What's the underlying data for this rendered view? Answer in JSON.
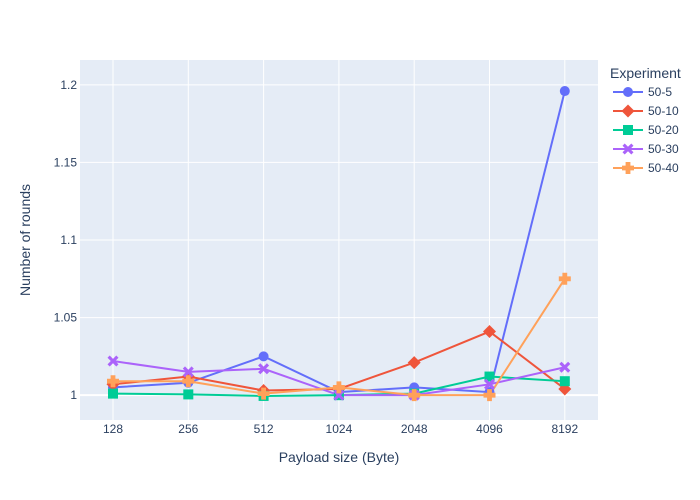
{
  "chart_data": {
    "type": "line",
    "x_categories": [
      "128",
      "256",
      "512",
      "1024",
      "2048",
      "4096",
      "8192"
    ],
    "xlabel": "Payload size (Byte)",
    "ylabel": "Number of rounds",
    "ylim": [
      0.984,
      1.216
    ],
    "y_ticks": [
      1,
      1.05,
      1.1,
      1.15,
      1.2
    ],
    "y_tick_labels": [
      "1",
      "1.05",
      "1.1",
      "1.15",
      "1.2"
    ],
    "grid": true,
    "legend": {
      "title": "Experiment",
      "placement": "right"
    },
    "series": [
      {
        "name": "50-5",
        "color": "#636efa",
        "marker": "circle",
        "values": [
          1.005,
          1.008,
          1.025,
          1.002,
          1.005,
          1.002,
          1.196
        ]
      },
      {
        "name": "50-10",
        "color": "#EF553B",
        "marker": "diamond",
        "values": [
          1.007,
          1.012,
          1.003,
          1.004,
          1.021,
          1.041,
          1.004
        ]
      },
      {
        "name": "50-20",
        "color": "#00cc96",
        "marker": "square",
        "values": [
          1.001,
          1.0005,
          0.9995,
          1.0,
          1.001,
          1.012,
          1.009
        ]
      },
      {
        "name": "50-30",
        "color": "#ab63fa",
        "marker": "x",
        "values": [
          1.022,
          1.015,
          1.017,
          1.0,
          1.0,
          1.007,
          1.018
        ]
      },
      {
        "name": "50-40",
        "color": "#FFA15A",
        "marker": "cross",
        "values": [
          1.009,
          1.009,
          1.001,
          1.005,
          1.0,
          1.0,
          1.075
        ]
      }
    ]
  }
}
